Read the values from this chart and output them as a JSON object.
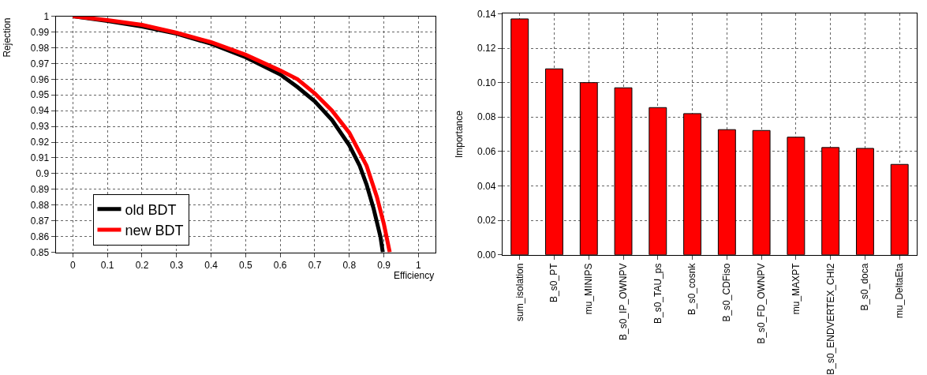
{
  "chart_data": [
    {
      "type": "line",
      "xlabel": "Efficiency",
      "ylabel": "Rejection",
      "xlim": [
        -0.05,
        1.05
      ],
      "ylim": [
        0.85,
        1.0
      ],
      "xticks": [
        0,
        0.1,
        0.2,
        0.3,
        0.4,
        0.5,
        0.6,
        0.7,
        0.8,
        0.9,
        1
      ],
      "yticks": [
        0.85,
        0.86,
        0.87,
        0.88,
        0.89,
        0.9,
        0.91,
        0.92,
        0.93,
        0.94,
        0.95,
        0.96,
        0.97,
        0.98,
        0.99,
        1
      ],
      "grid": true,
      "legend": "bottom left",
      "line_style": "solid",
      "series": [
        {
          "name": "old BDT",
          "color": "#000000",
          "x": [
            0,
            0.1,
            0.2,
            0.3,
            0.4,
            0.5,
            0.6,
            0.65,
            0.7,
            0.75,
            0.8,
            0.83,
            0.85,
            0.87,
            0.89,
            0.897
          ],
          "values": [
            1.0,
            0.997,
            0.9935,
            0.989,
            0.9825,
            0.974,
            0.963,
            0.955,
            0.946,
            0.934,
            0.918,
            0.905,
            0.893,
            0.878,
            0.86,
            0.85
          ]
        },
        {
          "name": "new BDT",
          "color": "#ff0000",
          "x": [
            0,
            0.1,
            0.2,
            0.3,
            0.4,
            0.5,
            0.6,
            0.65,
            0.7,
            0.75,
            0.8,
            0.85,
            0.88,
            0.9,
            0.917
          ],
          "values": [
            1.0,
            0.9975,
            0.9945,
            0.9895,
            0.9835,
            0.9755,
            0.9655,
            0.96,
            0.951,
            0.94,
            0.926,
            0.905,
            0.885,
            0.868,
            0.85
          ]
        }
      ]
    },
    {
      "type": "bar",
      "ylabel": "Importance",
      "ylim": [
        0,
        0.14
      ],
      "yticks": [
        {
          "value": 0,
          "label": "0.00"
        },
        {
          "value": 0.02,
          "label": "0.02"
        },
        {
          "value": 0.04,
          "label": "0.04"
        },
        {
          "value": 0.06,
          "label": "0.06"
        },
        {
          "value": 0.08,
          "label": "0.08"
        },
        {
          "value": 0.1,
          "label": "0.10"
        },
        {
          "value": 0.12,
          "label": "0.12"
        },
        {
          "value": 0.14,
          "label": "0.14"
        }
      ],
      "grid": true,
      "color": "#ff0000",
      "categories": [
        "sum_isolation",
        "B_s0_PT",
        "mu_MINIPS",
        "B_s0_IP_OWNPV",
        "B_s0_TAU_ps",
        "B_s0_cosnk",
        "B_s0_CDFiso",
        "B_s0_FD_OWNPV",
        "mu_MAXPT",
        "B_s0_ENDVERTEX_CHI2",
        "B_s0_doca",
        "mu_DeltaEta"
      ],
      "values": [
        0.137,
        0.108,
        0.1,
        0.097,
        0.0855,
        0.082,
        0.0727,
        0.0722,
        0.0683,
        0.0623,
        0.0618,
        0.0525
      ]
    }
  ]
}
